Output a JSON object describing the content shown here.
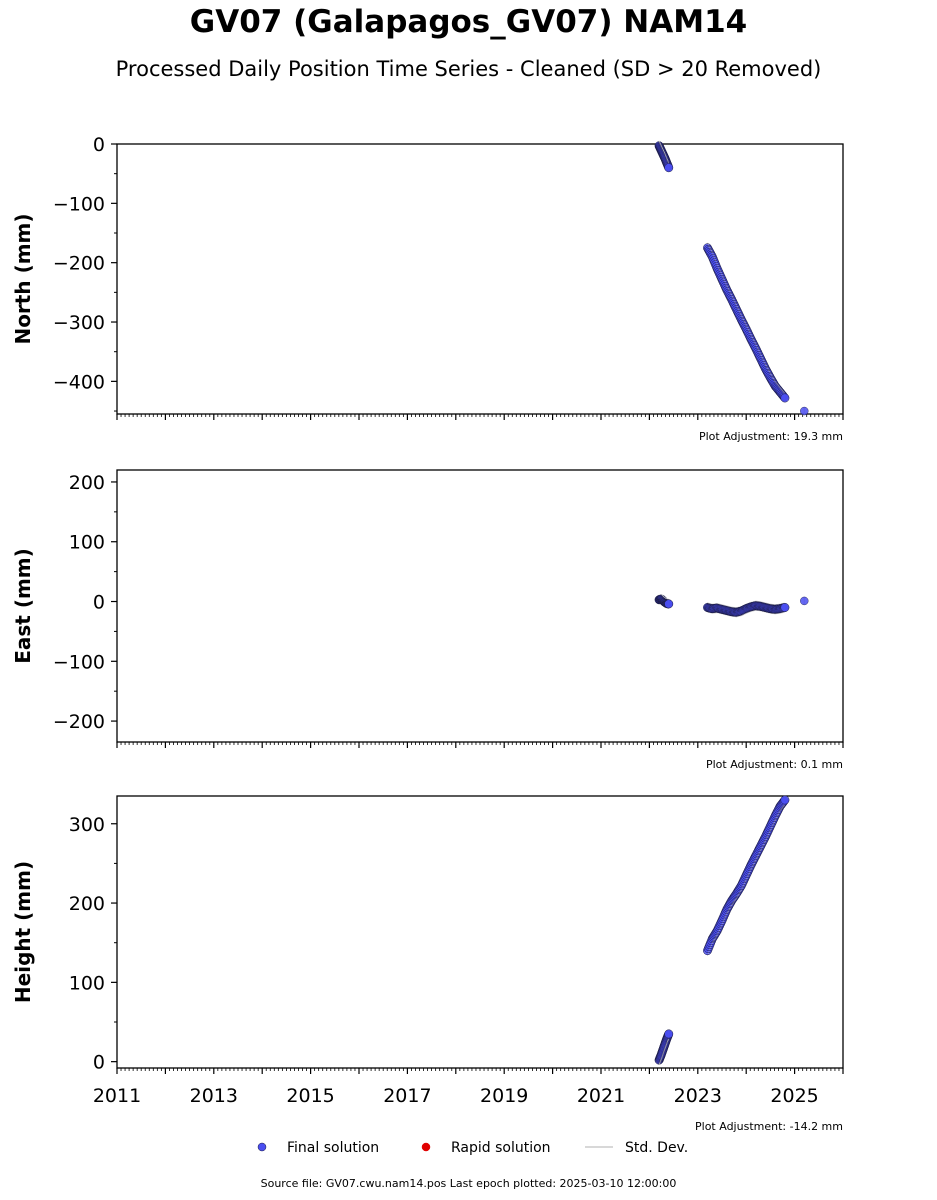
{
  "title": "GV07 (Galapagos_GV07) NAM14",
  "subtitle": "Processed Daily Position Time Series - Cleaned (SD > 20 Removed)",
  "footer": {
    "source_file": "GV07.cwu.nam14.pos",
    "last_epoch": "2025-03-10 12:00:00",
    "text": "Source file: GV07.cwu.nam14.pos  Last epoch plotted: 2025-03-10 12:00:00"
  },
  "legend": {
    "placement": "bottom-center",
    "items": [
      {
        "label": "Final solution",
        "color": "#4a4ef0",
        "marker": "circle"
      },
      {
        "label": "Rapid solution",
        "color": "#e00000",
        "marker": "circle"
      },
      {
        "label": "Std. Dev.",
        "color": "#cccccc",
        "marker": "line"
      }
    ]
  },
  "colors": {
    "final": "#4a4ef0",
    "final_edge": "#1a1a40",
    "rapid": "#e00000",
    "std_dev": "#cccccc"
  },
  "chart_data": [
    {
      "type": "scatter",
      "ylabel": "North (mm)",
      "xlim": [
        2011,
        2026
      ],
      "ylim": [
        -455,
        0
      ],
      "yticks": [
        0,
        -100,
        -200,
        -300,
        -400
      ],
      "ytick_labels": [
        "0",
        "−100",
        "−200",
        "−300",
        "−400"
      ],
      "show_x_tick_labels": false,
      "adjustment": "Plot Adjustment: 19.3 mm",
      "series": [
        {
          "x": [
            2022.2,
            2022.24,
            2022.28,
            2022.32,
            2022.36,
            2022.4
          ],
          "y": [
            -3,
            -10,
            -17,
            -24,
            -32,
            -40
          ]
        },
        {
          "x": [
            2023.2,
            2023.3,
            2023.4,
            2023.5,
            2023.6,
            2023.7,
            2023.8,
            2023.9,
            2024.0,
            2024.1,
            2024.2,
            2024.3,
            2024.4,
            2024.5,
            2024.6,
            2024.7,
            2024.8
          ],
          "y": [
            -175,
            -190,
            -210,
            -228,
            -246,
            -262,
            -279,
            -296,
            -312,
            -329,
            -345,
            -362,
            -379,
            -394,
            -408,
            -418,
            -428
          ]
        },
        {
          "x": [
            2025.2
          ],
          "y": [
            -450
          ]
        }
      ]
    },
    {
      "type": "scatter",
      "ylabel": "East (mm)",
      "xlim": [
        2011,
        2026
      ],
      "ylim": [
        -235,
        220
      ],
      "yticks": [
        200,
        100,
        0,
        -100,
        -200
      ],
      "ytick_labels": [
        "200",
        "100",
        "0",
        "−100",
        "−200"
      ],
      "show_x_tick_labels": false,
      "adjustment": "Plot Adjustment: 0.1 mm",
      "series": [
        {
          "x": [
            2022.2,
            2022.25,
            2022.3,
            2022.35,
            2022.4
          ],
          "y": [
            3,
            4,
            0,
            -3,
            -4
          ]
        },
        {
          "x": [
            2023.2,
            2023.3,
            2023.4,
            2023.5,
            2023.6,
            2023.7,
            2023.8,
            2023.9,
            2024.0,
            2024.1,
            2024.2,
            2024.3,
            2024.4,
            2024.5,
            2024.6,
            2024.7,
            2024.8
          ],
          "y": [
            -10,
            -12,
            -11,
            -13,
            -15,
            -17,
            -18,
            -16,
            -12,
            -9,
            -7,
            -8,
            -10,
            -12,
            -13,
            -12,
            -10
          ]
        },
        {
          "x": [
            2025.2
          ],
          "y": [
            1
          ]
        }
      ]
    },
    {
      "type": "scatter",
      "ylabel": "Height (mm)",
      "xlim": [
        2011,
        2026
      ],
      "ylim": [
        -8,
        335
      ],
      "yticks": [
        300,
        200,
        100,
        0
      ],
      "ytick_labels": [
        "300",
        "200",
        "100",
        "0"
      ],
      "show_x_tick_labels": true,
      "xticks": [
        2011,
        2013,
        2015,
        2017,
        2019,
        2021,
        2023,
        2025
      ],
      "xtick_labels": [
        "2011",
        "2013",
        "2015",
        "2017",
        "2019",
        "2021",
        "2023",
        "2025"
      ],
      "adjustment": "Plot Adjustment: -14.2 mm",
      "series": [
        {
          "x": [
            2022.2,
            2022.24,
            2022.28,
            2022.32,
            2022.36,
            2022.4
          ],
          "y": [
            2,
            8,
            15,
            22,
            29,
            35
          ]
        },
        {
          "x": [
            2023.2,
            2023.3,
            2023.4,
            2023.5,
            2023.6,
            2023.7,
            2023.8,
            2023.9,
            2024.0,
            2024.1,
            2024.2,
            2024.3,
            2024.4,
            2024.5,
            2024.6,
            2024.7,
            2024.8
          ],
          "y": [
            140,
            155,
            165,
            178,
            192,
            203,
            212,
            222,
            235,
            248,
            260,
            272,
            284,
            297,
            310,
            322,
            330
          ]
        }
      ]
    }
  ]
}
